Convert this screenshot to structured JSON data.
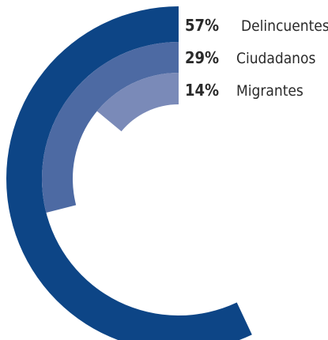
{
  "chart_data": {
    "type": "radial-bar",
    "series": [
      {
        "name": "Delincuentes",
        "value": 57,
        "label": "57%",
        "color": "#0d4586"
      },
      {
        "name": "Ciudadanos",
        "value": 29,
        "label": "29%",
        "color": "#4d6aa3"
      },
      {
        "name": "Migrantes",
        "value": 14,
        "label": "14%",
        "color": "#7a8ab8"
      }
    ],
    "max_value": 100,
    "start_angle": "top"
  }
}
